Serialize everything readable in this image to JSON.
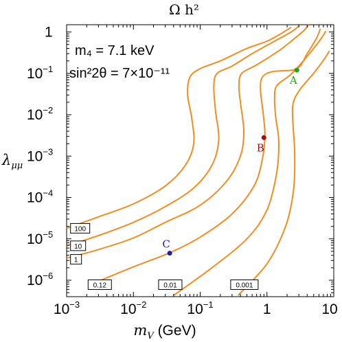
{
  "chart_data": {
    "type": "line",
    "title": "Ω h²",
    "xlabel": "m",
    "xlabel_sub": "V",
    "xlabel_unit": " (GeV)",
    "ylabel": "λ",
    "ylabel_sub": "μμ",
    "x_scale": "log",
    "y_scale": "log",
    "xlim": [
      0.001,
      10
    ],
    "ylim": [
      4e-07,
      1.5
    ],
    "x_ticks": [
      {
        "base": "10",
        "exp": "−3",
        "value": 0.001
      },
      {
        "base": "10",
        "exp": "−2",
        "value": 0.01
      },
      {
        "base": "10",
        "exp": "−1",
        "value": 0.1
      },
      {
        "base": "1",
        "exp": "",
        "value": 1
      },
      {
        "base": "10",
        "exp": "",
        "value": 10
      }
    ],
    "y_ticks": [
      {
        "base": "1",
        "exp": "",
        "value": 1
      },
      {
        "base": "10",
        "exp": "−1",
        "value": 0.1
      },
      {
        "base": "10",
        "exp": "−2",
        "value": 0.01
      },
      {
        "base": "10",
        "exp": "−3",
        "value": 0.001
      },
      {
        "base": "10",
        "exp": "−4",
        "value": 0.0001
      },
      {
        "base": "10",
        "exp": "−5",
        "value": 1e-05
      },
      {
        "base": "10",
        "exp": "−6",
        "value": 1e-06
      }
    ],
    "grid": false,
    "annotations": [
      {
        "text": "m₄ = 7.1 keV"
      },
      {
        "text": "sin²2θ = 7×10⁻¹¹"
      }
    ],
    "line_color": "#f28c1e",
    "series": [
      {
        "label": "100",
        "points": [
          [
            0.001,
            1.8e-05
          ],
          [
            0.003,
            3.4e-05
          ],
          [
            0.01,
            7e-05
          ],
          [
            0.03,
            0.00019
          ],
          [
            0.06,
            0.0006
          ],
          [
            0.08,
            0.002
          ],
          [
            0.075,
            0.008
          ],
          [
            0.065,
            0.03
          ],
          [
            0.07,
            0.08
          ],
          [
            0.1,
            0.13
          ],
          [
            0.2,
            0.2
          ],
          [
            0.5,
            0.4
          ],
          [
            1,
            0.6
          ],
          [
            1.6,
            0.9
          ],
          [
            2.3,
            1.3
          ]
        ]
      },
      {
        "label": "10",
        "points": [
          [
            0.001,
            6.8e-06
          ],
          [
            0.003,
            1.2e-05
          ],
          [
            0.01,
            2.5e-05
          ],
          [
            0.03,
            6e-05
          ],
          [
            0.08,
            0.00017
          ],
          [
            0.15,
            0.0006
          ],
          [
            0.19,
            0.0025
          ],
          [
            0.17,
            0.012
          ],
          [
            0.16,
            0.05
          ],
          [
            0.18,
            0.1
          ],
          [
            0.3,
            0.15
          ],
          [
            0.6,
            0.3
          ],
          [
            1.3,
            0.6
          ],
          [
            2.3,
            1
          ],
          [
            3,
            1.4
          ]
        ]
      },
      {
        "label": "1",
        "points": [
          [
            0.001,
            3.4e-06
          ],
          [
            0.003,
            5.5e-06
          ],
          [
            0.01,
            1.05e-05
          ],
          [
            0.03,
            2.5e-05
          ],
          [
            0.1,
            6.5e-05
          ],
          [
            0.25,
            0.00025
          ],
          [
            0.4,
            0.001
          ],
          [
            0.45,
            0.004
          ],
          [
            0.4,
            0.02
          ],
          [
            0.38,
            0.05
          ],
          [
            0.42,
            0.1
          ],
          [
            0.7,
            0.16
          ],
          [
            1.5,
            0.35
          ],
          [
            2.6,
            0.7
          ],
          [
            3.6,
            1.1
          ],
          [
            4.2,
            1.5
          ]
        ]
      },
      {
        "label": "0.12",
        "points": [
          [
            0.0028,
            9e-07
          ],
          [
            0.01,
            2.1e-06
          ],
          [
            0.035,
            4.6e-06
          ],
          [
            0.1,
            1.1e-05
          ],
          [
            0.3,
            4e-05
          ],
          [
            0.65,
            0.0002
          ],
          [
            0.87,
            0.001
          ],
          [
            0.93,
            0.0035
          ],
          [
            0.87,
            0.012
          ],
          [
            0.8,
            0.04
          ],
          [
            0.85,
            0.08
          ],
          [
            1.2,
            0.11
          ],
          [
            2.8,
            0.13
          ],
          [
            4,
            0.3
          ],
          [
            5.5,
            0.7
          ],
          [
            6.3,
            1.2
          ]
        ]
      },
      {
        "label": "0.01",
        "points": [
          [
            0.04,
            4.3e-07
          ],
          [
            0.15,
            2e-06
          ],
          [
            0.5,
            1e-05
          ],
          [
            1,
            5e-05
          ],
          [
            1.4,
            0.0004
          ],
          [
            1.5,
            0.0023
          ],
          [
            1.35,
            0.009
          ],
          [
            1.3,
            0.025
          ],
          [
            1.4,
            0.05
          ],
          [
            2.2,
            0.09
          ],
          [
            3.2,
            0.17
          ],
          [
            5,
            0.4
          ],
          [
            6.5,
            0.7
          ],
          [
            7.6,
            1.05
          ]
        ]
      },
      {
        "label": "0.001",
        "points": [
          [
            0.37,
            4.3e-07
          ],
          [
            1,
            2.5e-06
          ],
          [
            1.9,
            2e-05
          ],
          [
            2.5,
            0.00015
          ],
          [
            2.6,
            0.0012
          ],
          [
            2.45,
            0.006
          ],
          [
            2.45,
            0.018
          ],
          [
            3.1,
            0.04
          ],
          [
            5,
            0.1
          ],
          [
            7.2,
            0.22
          ],
          [
            8.6,
            0.35
          ]
        ]
      }
    ],
    "contour_labels": [
      {
        "text": "100",
        "x": 0.0012,
        "y": 1.8e-05
      },
      {
        "text": "10",
        "x": 0.0012,
        "y": 6.8e-06
      },
      {
        "text": "1",
        "x": 0.0012,
        "y": 3.2e-06
      },
      {
        "text": "0.12",
        "x": 0.0022,
        "y": 7.8e-07
      },
      {
        "text": "0.01",
        "x": 0.025,
        "y": 7.8e-07
      },
      {
        "text": "0.001",
        "x": 0.3,
        "y": 7.8e-07
      }
    ],
    "points": [
      {
        "label": "A",
        "x": 2.8,
        "y": 0.12,
        "color": "#1aa51a"
      },
      {
        "label": "B",
        "x": 0.9,
        "y": 0.0028,
        "color": "#a01010"
      },
      {
        "label": "C",
        "x": 0.035,
        "y": 4.5e-06,
        "color": "#1e1eb4"
      }
    ]
  }
}
